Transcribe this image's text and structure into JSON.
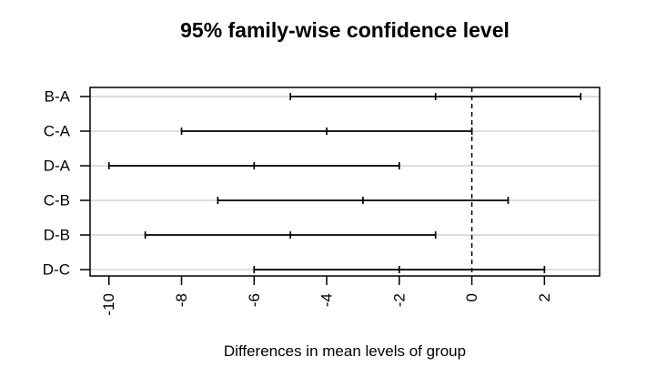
{
  "chart_data": {
    "type": "scatter",
    "subtype": "horizontal-confidence-intervals",
    "title": "95% family-wise confidence level",
    "xlabel": "Differences in mean levels of group",
    "ylabel": "",
    "categories": [
      "B-A",
      "C-A",
      "D-A",
      "C-B",
      "D-B",
      "D-C"
    ],
    "intervals": [
      {
        "pair": "B-A",
        "lower": -5,
        "center": -1,
        "upper": 3
      },
      {
        "pair": "C-A",
        "lower": -8,
        "center": -4,
        "upper": 0
      },
      {
        "pair": "D-A",
        "lower": -10,
        "center": -6,
        "upper": -2
      },
      {
        "pair": "C-B",
        "lower": -7,
        "center": -3,
        "upper": 1
      },
      {
        "pair": "D-B",
        "lower": -9,
        "center": -5,
        "upper": -1
      },
      {
        "pair": "D-C",
        "lower": -6,
        "center": -2,
        "upper": 2
      }
    ],
    "xticks": [
      -10,
      -8,
      -6,
      -4,
      -2,
      0,
      2
    ],
    "xlim": [
      -10.52,
      3.52
    ],
    "x_tick_label_rotation_deg": 90,
    "zero_reference_line_x": 0,
    "zero_reference_line_style": "dashed",
    "grid": "one light horizontal gridline per category row",
    "legend_position": "none",
    "colors": {
      "line": "#000000",
      "gridline": "#d3d3d3",
      "text": "#000000",
      "background": "#ffffff"
    }
  }
}
